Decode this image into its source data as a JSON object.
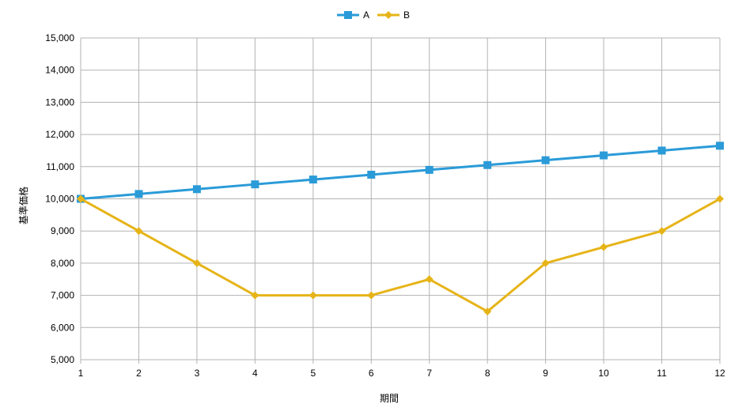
{
  "chart_data": {
    "type": "line",
    "title": "",
    "xlabel": "期間",
    "ylabel": "基準価格",
    "x": [
      1,
      2,
      3,
      4,
      5,
      6,
      7,
      8,
      9,
      10,
      11,
      12
    ],
    "ylim": [
      5000,
      15000
    ],
    "ytick_step": 1000,
    "grid": true,
    "legend_position": "top-center",
    "series": [
      {
        "name": "A",
        "color": "#2a9bd8",
        "marker": "square",
        "values": [
          10000,
          10150,
          10300,
          10450,
          10600,
          10750,
          10900,
          11050,
          11200,
          11350,
          11500,
          11650
        ]
      },
      {
        "name": "B",
        "color": "#e6b418",
        "marker": "diamond",
        "values": [
          10000,
          9000,
          8000,
          7000,
          7000,
          7000,
          7500,
          6500,
          8000,
          8500,
          9000,
          10000
        ]
      }
    ]
  }
}
